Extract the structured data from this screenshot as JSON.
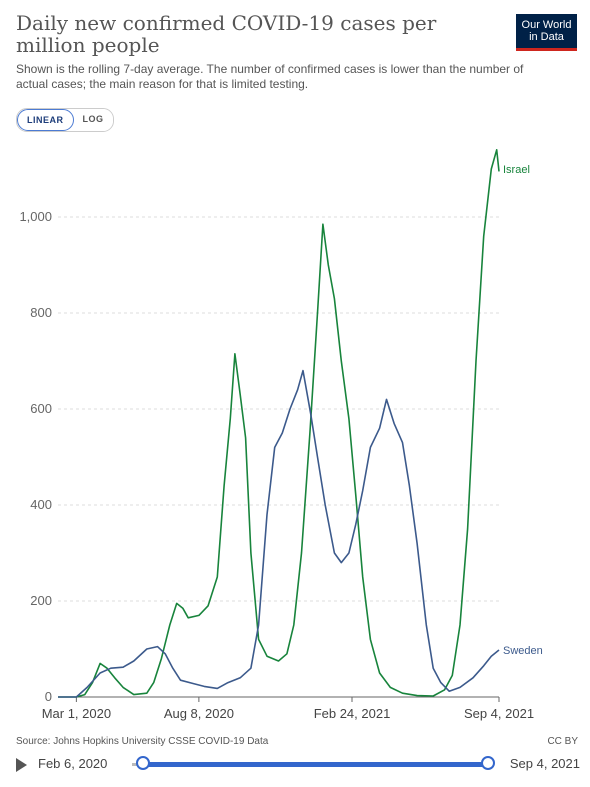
{
  "header": {
    "title": "Daily new confirmed COVID-19 cases per million people",
    "subtitle": "Shown is the rolling 7-day average. The number of confirmed cases is lower than the number of actual cases; the main reason for that is limited testing.",
    "logo_line1": "Our World",
    "logo_line2": "in Data"
  },
  "controls": {
    "linear_label": "LINEAR",
    "log_label": "LOG",
    "active_scale": "linear"
  },
  "footer": {
    "source": "Source: Johns Hopkins University CSSE COVID-19 Data",
    "license": "CC BY"
  },
  "timeline": {
    "start_label": "Feb 6, 2020",
    "end_label": "Sep 4, 2021"
  },
  "colors": {
    "israel": "#18843c",
    "sweden": "#3c5a8c",
    "grid": "#dddddd",
    "axis": "#666666"
  },
  "chart_data": {
    "type": "line",
    "title": "Daily new confirmed COVID-19 cases per million people",
    "ylim": [
      0,
      1150
    ],
    "y_ticks": [
      0,
      200,
      400,
      600,
      800,
      1000
    ],
    "y_tick_labels": [
      "0",
      "200",
      "400",
      "600",
      "800",
      "1,000"
    ],
    "x_range": [
      "2020-02-06",
      "2021-09-04"
    ],
    "x_ticks": [
      {
        "date": "2020-03-01",
        "label": "Mar 1, 2020"
      },
      {
        "date": "2020-08-08",
        "label": "Aug 8, 2020"
      },
      {
        "date": "2021-02-24",
        "label": "Feb 24, 2021"
      },
      {
        "date": "2021-09-04",
        "label": "Sep 4, 2021"
      }
    ],
    "grid": true,
    "series": [
      {
        "name": "Israel",
        "color": "#18843c",
        "points": [
          [
            "2020-02-06",
            0
          ],
          [
            "2020-03-01",
            0
          ],
          [
            "2020-03-12",
            5
          ],
          [
            "2020-03-22",
            30
          ],
          [
            "2020-04-01",
            70
          ],
          [
            "2020-04-10",
            60
          ],
          [
            "2020-04-20",
            40
          ],
          [
            "2020-05-01",
            20
          ],
          [
            "2020-05-15",
            5
          ],
          [
            "2020-06-01",
            8
          ],
          [
            "2020-06-10",
            30
          ],
          [
            "2020-06-20",
            80
          ],
          [
            "2020-07-01",
            150
          ],
          [
            "2020-07-10",
            195
          ],
          [
            "2020-07-18",
            185
          ],
          [
            "2020-07-25",
            165
          ],
          [
            "2020-08-08",
            170
          ],
          [
            "2020-08-20",
            190
          ],
          [
            "2020-09-01",
            250
          ],
          [
            "2020-09-10",
            440
          ],
          [
            "2020-09-18",
            580
          ],
          [
            "2020-09-24",
            715
          ],
          [
            "2020-10-01",
            630
          ],
          [
            "2020-10-08",
            540
          ],
          [
            "2020-10-15",
            300
          ],
          [
            "2020-10-25",
            120
          ],
          [
            "2020-11-05",
            85
          ],
          [
            "2020-11-20",
            75
          ],
          [
            "2020-12-01",
            90
          ],
          [
            "2020-12-10",
            150
          ],
          [
            "2020-12-20",
            300
          ],
          [
            "2020-12-31",
            550
          ],
          [
            "2021-01-10",
            800
          ],
          [
            "2021-01-17",
            985
          ],
          [
            "2021-01-24",
            900
          ],
          [
            "2021-02-01",
            830
          ],
          [
            "2021-02-10",
            700
          ],
          [
            "2021-02-20",
            580
          ],
          [
            "2021-03-01",
            420
          ],
          [
            "2021-03-10",
            250
          ],
          [
            "2021-03-20",
            120
          ],
          [
            "2021-04-01",
            50
          ],
          [
            "2021-04-15",
            20
          ],
          [
            "2021-05-01",
            8
          ],
          [
            "2021-05-20",
            3
          ],
          [
            "2021-06-10",
            2
          ],
          [
            "2021-06-25",
            15
          ],
          [
            "2021-07-05",
            45
          ],
          [
            "2021-07-15",
            150
          ],
          [
            "2021-07-25",
            350
          ],
          [
            "2021-08-05",
            700
          ],
          [
            "2021-08-15",
            960
          ],
          [
            "2021-08-25",
            1100
          ],
          [
            "2021-09-01",
            1140
          ],
          [
            "2021-09-04",
            1095
          ]
        ]
      },
      {
        "name": "Sweden",
        "color": "#3c5a8c",
        "points": [
          [
            "2020-02-06",
            0
          ],
          [
            "2020-03-01",
            0
          ],
          [
            "2020-03-15",
            20
          ],
          [
            "2020-04-01",
            50
          ],
          [
            "2020-04-15",
            60
          ],
          [
            "2020-05-01",
            62
          ],
          [
            "2020-05-15",
            75
          ],
          [
            "2020-06-01",
            100
          ],
          [
            "2020-06-15",
            105
          ],
          [
            "2020-06-25",
            90
          ],
          [
            "2020-07-05",
            60
          ],
          [
            "2020-07-15",
            35
          ],
          [
            "2020-08-01",
            28
          ],
          [
            "2020-08-15",
            22
          ],
          [
            "2020-09-01",
            18
          ],
          [
            "2020-09-15",
            30
          ],
          [
            "2020-10-01",
            40
          ],
          [
            "2020-10-15",
            60
          ],
          [
            "2020-10-25",
            150
          ],
          [
            "2020-11-05",
            380
          ],
          [
            "2020-11-15",
            520
          ],
          [
            "2020-11-25",
            550
          ],
          [
            "2020-12-05",
            600
          ],
          [
            "2020-12-15",
            640
          ],
          [
            "2020-12-22",
            680
          ],
          [
            "2021-01-01",
            590
          ],
          [
            "2021-01-10",
            500
          ],
          [
            "2021-01-20",
            400
          ],
          [
            "2021-02-01",
            300
          ],
          [
            "2021-02-10",
            280
          ],
          [
            "2021-02-20",
            300
          ],
          [
            "2021-03-01",
            360
          ],
          [
            "2021-03-10",
            430
          ],
          [
            "2021-03-20",
            520
          ],
          [
            "2021-04-01",
            560
          ],
          [
            "2021-04-10",
            620
          ],
          [
            "2021-04-20",
            570
          ],
          [
            "2021-05-01",
            530
          ],
          [
            "2021-05-10",
            440
          ],
          [
            "2021-05-20",
            320
          ],
          [
            "2021-06-01",
            150
          ],
          [
            "2021-06-10",
            60
          ],
          [
            "2021-06-20",
            30
          ],
          [
            "2021-07-01",
            12
          ],
          [
            "2021-07-15",
            20
          ],
          [
            "2021-08-01",
            40
          ],
          [
            "2021-08-15",
            65
          ],
          [
            "2021-08-25",
            85
          ],
          [
            "2021-09-04",
            98
          ]
        ]
      }
    ]
  }
}
